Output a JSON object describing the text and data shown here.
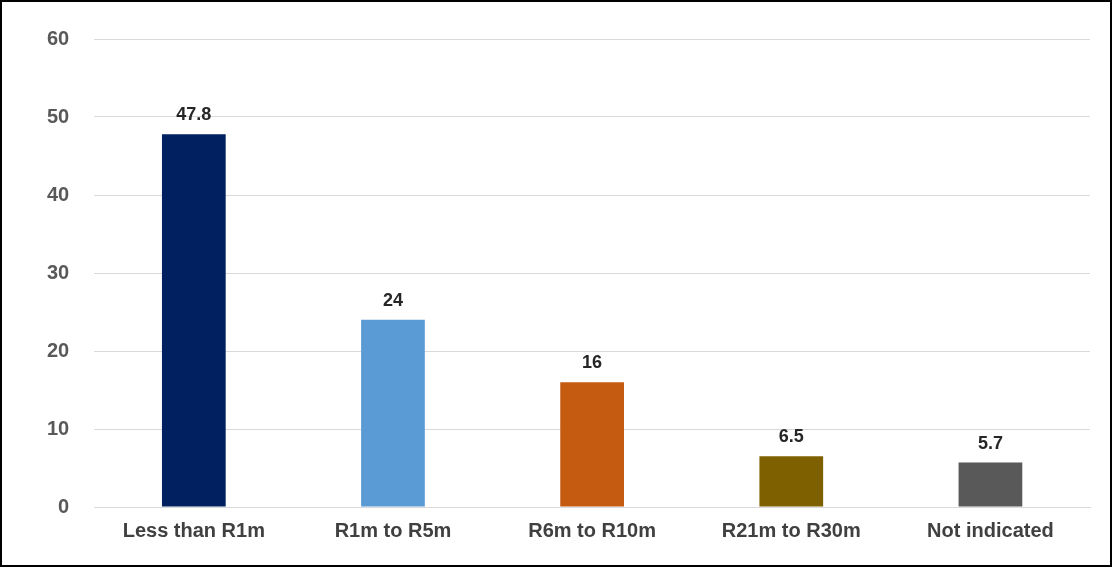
{
  "chart_data": {
    "type": "bar",
    "categories": [
      "Less than R1m",
      "R1m to R5m",
      "R6m to R10m",
      "R21m to R30m",
      "Not indicated"
    ],
    "values": [
      47.8,
      24,
      16,
      6.5,
      5.7
    ],
    "colors": [
      "#002060",
      "#5b9bd5",
      "#c55a11",
      "#7f6000",
      "#595959"
    ],
    "ylim": [
      0,
      60
    ],
    "yticks": [
      0,
      10,
      20,
      30,
      40,
      50,
      60
    ],
    "grid": "y",
    "legend": false,
    "data_labels": true
  }
}
